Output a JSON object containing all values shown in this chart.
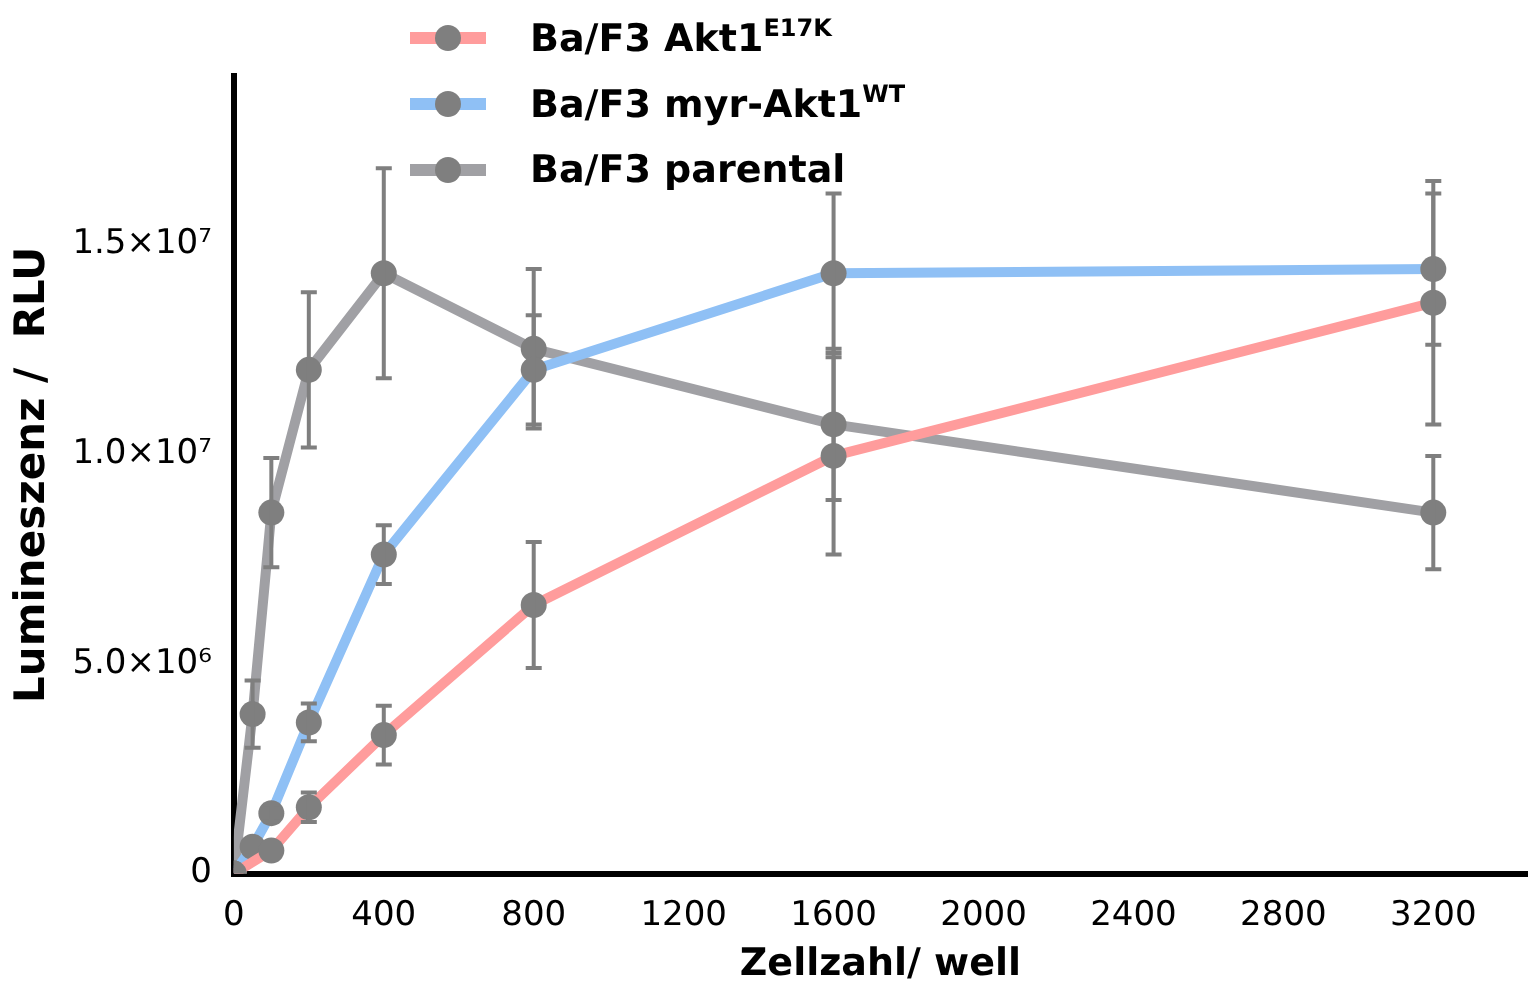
{
  "chart_data": {
    "type": "line",
    "xlabel": "Zellzahl/ well",
    "ylabel": "Lumineszenz /  RLU",
    "x": [
      0,
      50,
      100,
      200,
      400,
      800,
      1600,
      3200
    ],
    "series": [
      {
        "name": "Ba/F3 Akt1$^{E17K}$",
        "color": "#ff9c9c",
        "values": [
          0,
          null,
          550000,
          1580000,
          3300000,
          6400000,
          9950000,
          13600000
        ],
        "errors": [
          null,
          null,
          null,
          350000,
          700000,
          1500000,
          2350000,
          2900000
        ]
      },
      {
        "name": "Ba/F3 myr-Akt1$^{WT}$",
        "color": "#8fc0f5",
        "values": [
          0,
          640000,
          1440000,
          3600000,
          7600000,
          12000000,
          14300000,
          14400000
        ],
        "errors": [
          null,
          null,
          200000,
          450000,
          700000,
          1300000,
          1900000,
          1800000
        ]
      },
      {
        "name": "Ba/F3 parental",
        "color": "#a0a0a4",
        "values": [
          0,
          3800000,
          8600000,
          12000000,
          14300000,
          12500000,
          10700000,
          8600000
        ],
        "errors": [
          null,
          800000,
          1300000,
          1850000,
          2500000,
          1900000,
          1800000,
          1350000
        ]
      }
    ],
    "xlim": [
      0,
      3450
    ],
    "xticks": [
      0,
      400,
      800,
      1200,
      1600,
      2000,
      2400,
      2800,
      3200
    ],
    "ylim": [
      0,
      19000000
    ],
    "yticks": [
      0,
      {
        "value": 5000000,
        "label": "5.0×10⁶"
      },
      {
        "value": 10000000,
        "label": "1.0×10⁷"
      },
      {
        "value": 15000000,
        "label": "1.5×10⁷"
      }
    ],
    "grid": false,
    "legend": "top left",
    "marker": "circle",
    "line_style": "solid"
  }
}
